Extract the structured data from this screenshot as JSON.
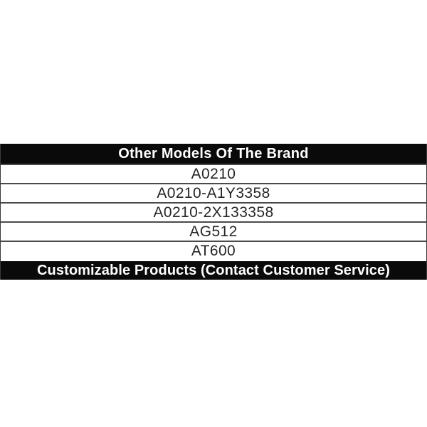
{
  "table": {
    "header": "Other Models Of The Brand",
    "models": [
      "A0210",
      "A0210-A1Y3358",
      "A0210-2X133358",
      "AG512",
      "AT600"
    ],
    "footer": "Customizable Products (Contact Customer Service)"
  },
  "colors": {
    "bar_background": "#0a0a0a",
    "bar_text": "#ffffff",
    "row_text": "#262626",
    "separator": "#4a4a4a",
    "page_background": "#ffffff"
  }
}
